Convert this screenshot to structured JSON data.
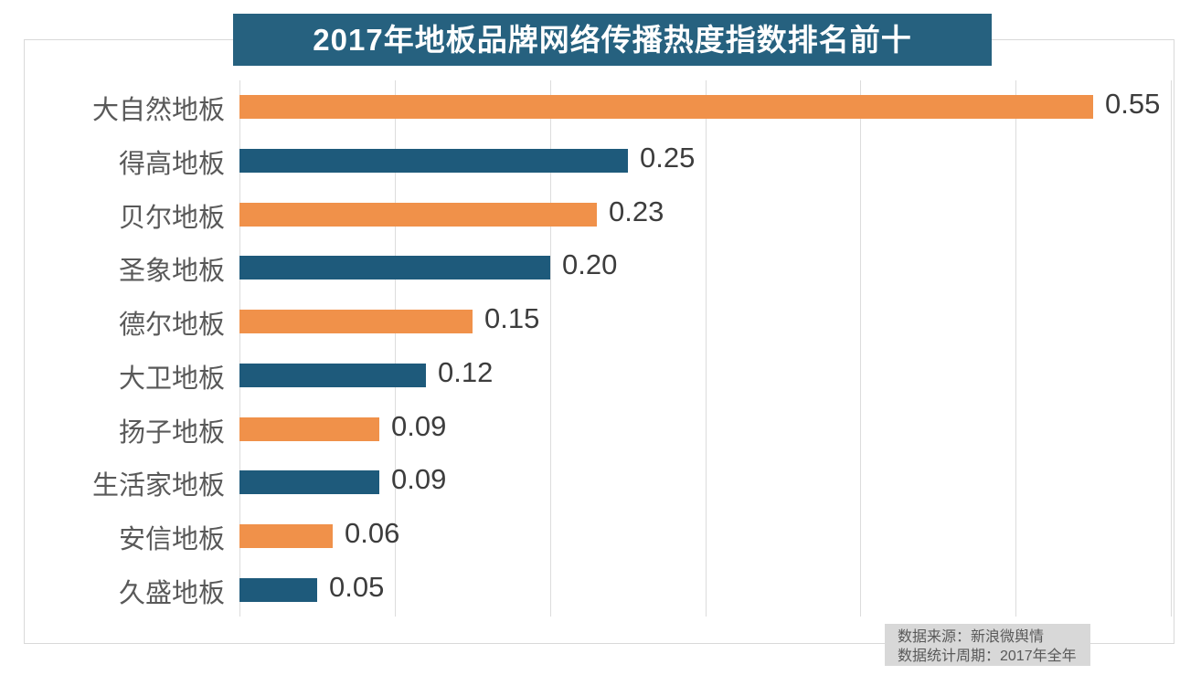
{
  "title": "2017年地板品牌网络传播热度指数排名前十",
  "footer": {
    "source_line": "数据来源：新浪微舆情",
    "period_line": "数据统计周期：2017年全年"
  },
  "colors": {
    "title_bg": "#26617F",
    "title_text": "#FFFFFF",
    "bar_orange": "#F0914A",
    "bar_teal": "#1E5A7B",
    "grid_line": "#DCDCDC",
    "frame_border": "#D9D9D9",
    "category_text": "#595959",
    "value_text": "#3D3D3D",
    "footer_bg": "#D8D8D8",
    "footer_text": "#595959"
  },
  "chart_data": {
    "type": "bar",
    "orientation": "horizontal",
    "title": "2017年地板品牌网络传播热度指数排名前十",
    "categories": [
      "大自然地板",
      "得高地板",
      "贝尔地板",
      "圣象地板",
      "德尔地板",
      "大卫地板",
      "扬子地板",
      "生活家地板",
      "安信地板",
      "久盛地板"
    ],
    "values": [
      0.55,
      0.25,
      0.23,
      0.2,
      0.15,
      0.12,
      0.09,
      0.09,
      0.06,
      0.05
    ],
    "value_labels": [
      "0.55",
      "0.25",
      "0.23",
      "0.20",
      "0.15",
      "0.12",
      "0.09",
      "0.09",
      "0.06",
      "0.05"
    ],
    "bar_colors_alternate": [
      "#F0914A",
      "#1E5A7B"
    ],
    "xlabel": "",
    "ylabel": "",
    "xlim": [
      0,
      0.6
    ],
    "grid_step": 0.1,
    "grid": true,
    "legend": false,
    "annotations": [
      "数据来源：新浪微舆情",
      "数据统计周期：2017年全年"
    ]
  }
}
